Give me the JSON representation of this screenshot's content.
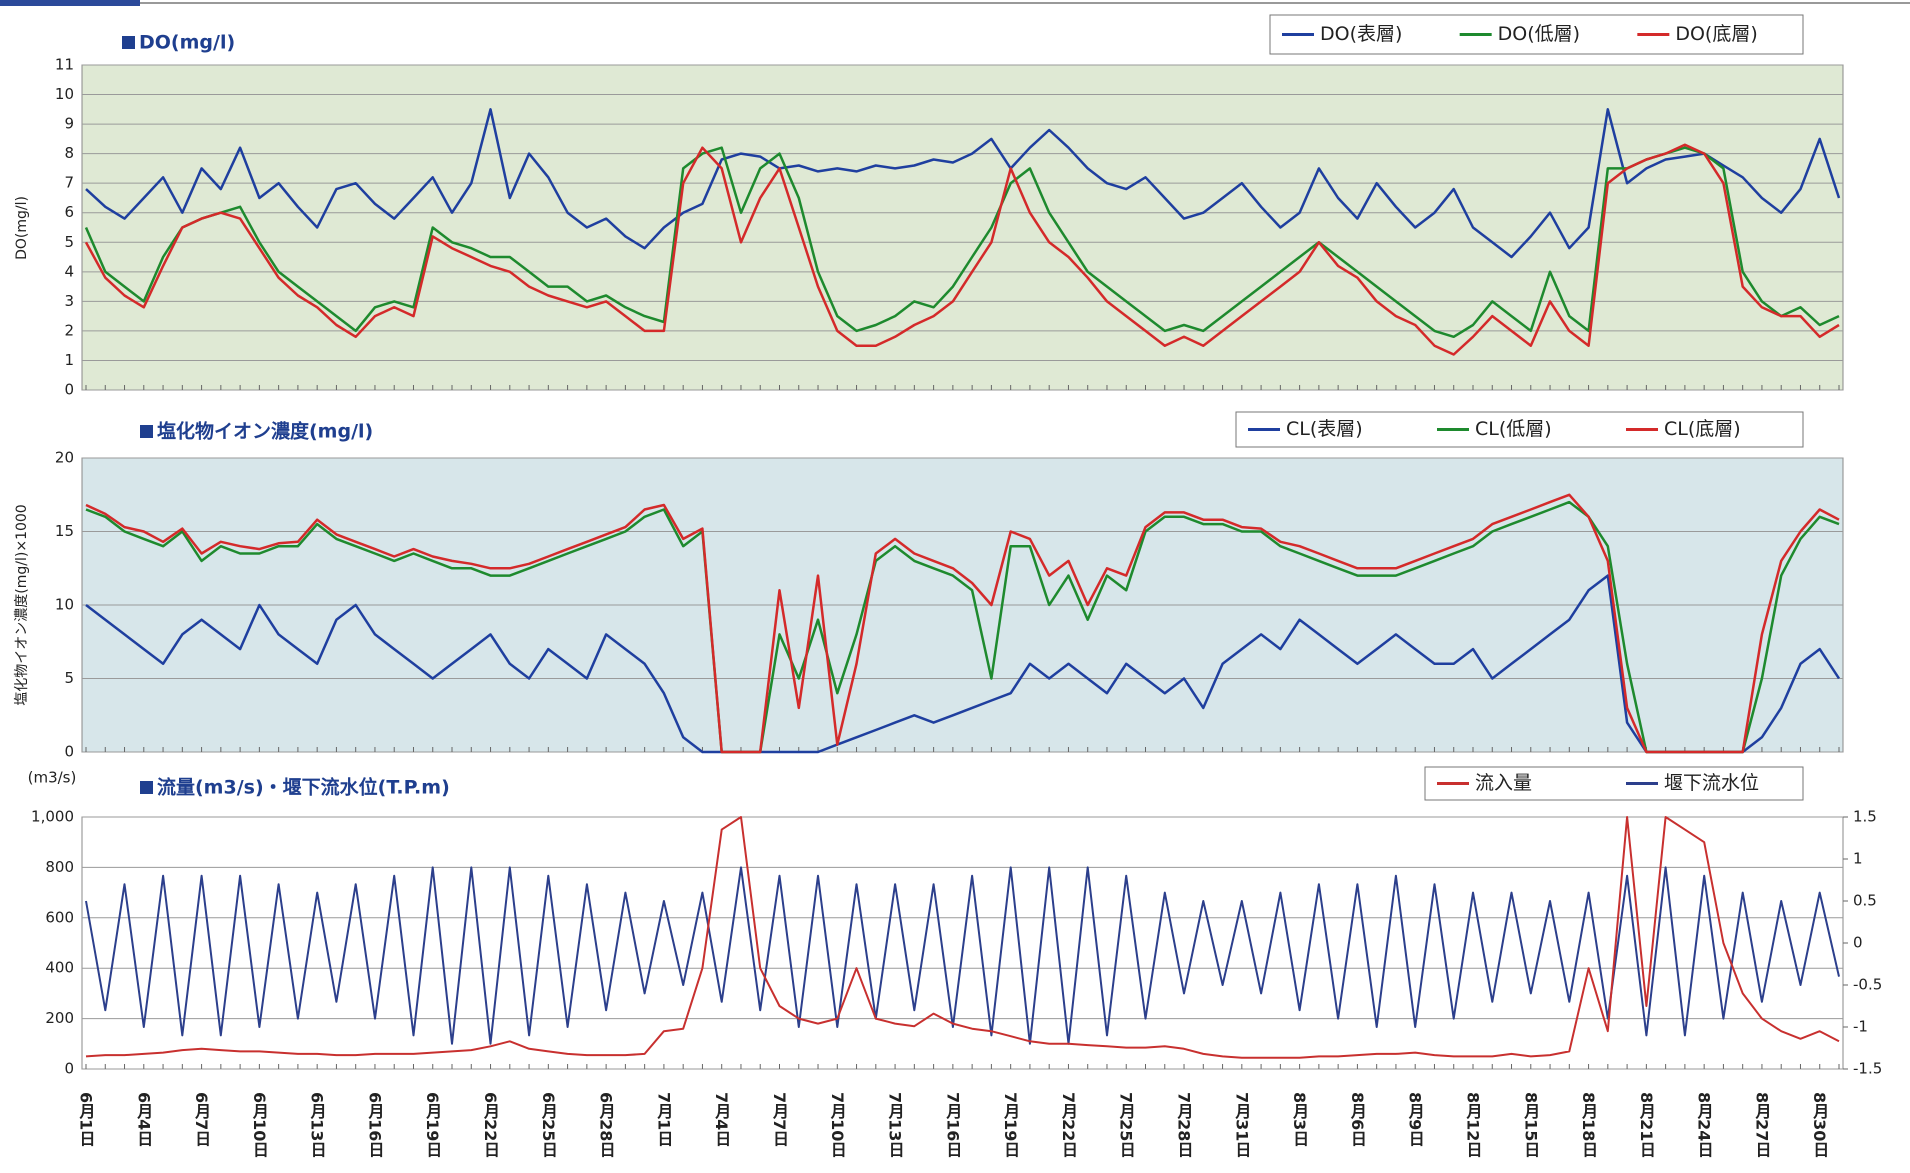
{
  "chart_data": [
    {
      "type": "line",
      "title": "DO(mg/l)",
      "ylabel": "DO(mg/l)",
      "legend": "top-right",
      "grid": true,
      "background": "#dfe9d4",
      "ylim": [
        0,
        11
      ],
      "yticks": [
        0,
        1,
        2,
        3,
        4,
        5,
        6,
        7,
        8,
        9,
        10,
        11
      ],
      "series": [
        {
          "name": "DO(表層)",
          "color": "#1f3f9f",
          "values": [
            6.8,
            6.2,
            5.8,
            6.5,
            7.2,
            6.0,
            7.5,
            6.8,
            8.2,
            6.5,
            7.0,
            6.2,
            5.5,
            6.8,
            7.0,
            6.3,
            5.8,
            6.5,
            7.2,
            6.0,
            7.0,
            9.5,
            6.5,
            8.0,
            7.2,
            6.0,
            5.5,
            5.8,
            5.2,
            4.8,
            5.5,
            6.0,
            6.3,
            7.8,
            8.0,
            7.9,
            7.5,
            7.6,
            7.4,
            7.5,
            7.4,
            7.6,
            7.5,
            7.6,
            7.8,
            7.7,
            8.0,
            8.5,
            7.5,
            8.2,
            8.8,
            8.2,
            7.5,
            7.0,
            6.8,
            7.2,
            6.5,
            5.8,
            6.0,
            6.5,
            7.0,
            6.2,
            5.5,
            6.0,
            7.5,
            6.5,
            5.8,
            7.0,
            6.2,
            5.5,
            6.0,
            6.8,
            5.5,
            5.0,
            4.5,
            5.2,
            6.0,
            4.8,
            5.5,
            9.5,
            7.0,
            7.5,
            7.8,
            7.9,
            8.0,
            7.6,
            7.2,
            6.5,
            6.0,
            6.8,
            8.5,
            6.5
          ]
        },
        {
          "name": "DO(低層)",
          "color": "#1e8a2e",
          "values": [
            5.5,
            4.0,
            3.5,
            3.0,
            4.5,
            5.5,
            5.8,
            6.0,
            6.2,
            5.0,
            4.0,
            3.5,
            3.0,
            2.5,
            2.0,
            2.8,
            3.0,
            2.8,
            5.5,
            5.0,
            4.8,
            4.5,
            4.5,
            4.0,
            3.5,
            3.5,
            3.0,
            3.2,
            2.8,
            2.5,
            2.3,
            7.5,
            8.0,
            8.2,
            6.0,
            7.5,
            8.0,
            6.5,
            4.0,
            2.5,
            2.0,
            2.2,
            2.5,
            3.0,
            2.8,
            3.5,
            4.5,
            5.5,
            7.0,
            7.5,
            6.0,
            5.0,
            4.0,
            3.5,
            3.0,
            2.5,
            2.0,
            2.2,
            2.0,
            2.5,
            3.0,
            3.5,
            4.0,
            4.5,
            5.0,
            4.5,
            4.0,
            3.5,
            3.0,
            2.5,
            2.0,
            1.8,
            2.2,
            3.0,
            2.5,
            2.0,
            4.0,
            2.5,
            2.0,
            7.5,
            7.5,
            7.8,
            8.0,
            8.2,
            8.0,
            7.5,
            4.0,
            3.0,
            2.5,
            2.8,
            2.2,
            2.5
          ]
        },
        {
          "name": "DO(底層)",
          "color": "#d42a2a",
          "values": [
            5.0,
            3.8,
            3.2,
            2.8,
            4.2,
            5.5,
            5.8,
            6.0,
            5.8,
            4.8,
            3.8,
            3.2,
            2.8,
            2.2,
            1.8,
            2.5,
            2.8,
            2.5,
            5.2,
            4.8,
            4.5,
            4.2,
            4.0,
            3.5,
            3.2,
            3.0,
            2.8,
            3.0,
            2.5,
            2.0,
            2.0,
            7.0,
            8.2,
            7.5,
            5.0,
            6.5,
            7.5,
            5.5,
            3.5,
            2.0,
            1.5,
            1.5,
            1.8,
            2.2,
            2.5,
            3.0,
            4.0,
            5.0,
            7.5,
            6.0,
            5.0,
            4.5,
            3.8,
            3.0,
            2.5,
            2.0,
            1.5,
            1.8,
            1.5,
            2.0,
            2.5,
            3.0,
            3.5,
            4.0,
            5.0,
            4.2,
            3.8,
            3.0,
            2.5,
            2.2,
            1.5,
            1.2,
            1.8,
            2.5,
            2.0,
            1.5,
            3.0,
            2.0,
            1.5,
            7.0,
            7.5,
            7.8,
            8.0,
            8.3,
            8.0,
            7.0,
            3.5,
            2.8,
            2.5,
            2.5,
            1.8,
            2.2
          ]
        }
      ]
    },
    {
      "type": "line",
      "title": "塩化物イオン濃度(mg/l)",
      "ylabel": "塩化物イオン濃度(mg/l)×1000",
      "legend": "top-right",
      "grid": true,
      "background": "#d7e6ea",
      "ylim": [
        0,
        20
      ],
      "yticks": [
        0,
        5,
        10,
        15,
        20
      ],
      "series": [
        {
          "name": "CL(表層)",
          "color": "#1f3f9f",
          "values": [
            10,
            9,
            8,
            7,
            6,
            8,
            9,
            8,
            7,
            10,
            8,
            7,
            6,
            9,
            10,
            8,
            7,
            6,
            5,
            6,
            7,
            8,
            6,
            5,
            7,
            6,
            5,
            8,
            7,
            6,
            4,
            1,
            0,
            0,
            0,
            0,
            0,
            0,
            0,
            0.5,
            1,
            1.5,
            2,
            2.5,
            2,
            2.5,
            3,
            3.5,
            4,
            6,
            5,
            6,
            5,
            4,
            6,
            5,
            4,
            5,
            3,
            6,
            7,
            8,
            7,
            9,
            8,
            7,
            6,
            7,
            8,
            7,
            6,
            6,
            7,
            5,
            6,
            7,
            8,
            9,
            11,
            12,
            2,
            0,
            0,
            0,
            0,
            0,
            0,
            1,
            3,
            6,
            7,
            5
          ]
        },
        {
          "name": "CL(低層)",
          "color": "#1e8a2e",
          "values": [
            16.5,
            16,
            15,
            14.5,
            14,
            15,
            13,
            14,
            13.5,
            13.5,
            14,
            14,
            15.5,
            14.5,
            14,
            13.5,
            13,
            13.5,
            13,
            12.5,
            12.5,
            12,
            12,
            12.5,
            13,
            13.5,
            14,
            14.5,
            15,
            16,
            16.5,
            14,
            15,
            0,
            0,
            0,
            8,
            5,
            9,
            4,
            8,
            13,
            14,
            13,
            12.5,
            12,
            11,
            5,
            14,
            14,
            10,
            12,
            9,
            12,
            11,
            15,
            16,
            16,
            15.5,
            15.5,
            15,
            15,
            14,
            13.5,
            13,
            12.5,
            12,
            12,
            12,
            12.5,
            13,
            13.5,
            14,
            15,
            15.5,
            16,
            16.5,
            17,
            16,
            14,
            6,
            0,
            0,
            0,
            0,
            0,
            0,
            5,
            12,
            14.5,
            16,
            15.5
          ]
        },
        {
          "name": "CL(底層)",
          "color": "#d42a2a",
          "values": [
            16.8,
            16.2,
            15.3,
            15,
            14.3,
            15.2,
            13.5,
            14.3,
            14,
            13.8,
            14.2,
            14.3,
            15.8,
            14.8,
            14.3,
            13.8,
            13.3,
            13.8,
            13.3,
            13,
            12.8,
            12.5,
            12.5,
            12.8,
            13.3,
            13.8,
            14.3,
            14.8,
            15.3,
            16.5,
            16.8,
            14.5,
            15.2,
            0,
            0,
            0,
            11,
            3,
            12,
            0.5,
            6,
            13.5,
            14.5,
            13.5,
            13,
            12.5,
            11.5,
            10,
            15,
            14.5,
            12,
            13,
            10,
            12.5,
            12,
            15.3,
            16.3,
            16.3,
            15.8,
            15.8,
            15.3,
            15.2,
            14.3,
            14,
            13.5,
            13,
            12.5,
            12.5,
            12.5,
            13,
            13.5,
            14,
            14.5,
            15.5,
            16,
            16.5,
            17,
            17.5,
            16,
            13,
            3,
            0,
            0,
            0,
            0,
            0,
            0,
            8,
            13,
            15,
            16.5,
            15.8
          ]
        }
      ]
    },
    {
      "type": "line",
      "title": "流量(m3/s)・堰下流水位(T.P.m)",
      "ylabel": "(m3/s)",
      "legend": "top-right",
      "grid": true,
      "background": "#ffffff",
      "categories": [
        "6月1日",
        null,
        null,
        "6月4日",
        null,
        null,
        "6月7日",
        null,
        null,
        "6月10日",
        null,
        null,
        "6月13日",
        null,
        null,
        "6月16日",
        null,
        null,
        "6月19日",
        null,
        null,
        "6月22日",
        null,
        null,
        "6月25日",
        null,
        null,
        "6月28日",
        null,
        null,
        "7月1日",
        null,
        null,
        "7月4日",
        null,
        null,
        "7月7日",
        null,
        null,
        "7月10日",
        null,
        null,
        "7月13日",
        null,
        null,
        "7月16日",
        null,
        null,
        "7月19日",
        null,
        null,
        "7月22日",
        null,
        null,
        "7月25日",
        null,
        null,
        "7月28日",
        null,
        null,
        "7月31日",
        null,
        null,
        "8月3日",
        null,
        null,
        "8月6日",
        null,
        null,
        "8月9日",
        null,
        null,
        "8月12日",
        null,
        null,
        "8月15日",
        null,
        null,
        "8月18日",
        null,
        null,
        "8月21日",
        null,
        null,
        "8月24日",
        null,
        null,
        "8月27日",
        null,
        null,
        "8月30日",
        null
      ],
      "ylim": [
        0,
        1000
      ],
      "yticks": [
        0,
        200,
        400,
        600,
        800,
        {
          "value": 1000,
          "label": "1,000"
        }
      ],
      "y2lim": [
        -1.5,
        1.5
      ],
      "y2ticks": [
        -1.5,
        -1,
        -0.5,
        0,
        0.5,
        1,
        1.5
      ],
      "series": [
        {
          "name": "流入量",
          "color": "#c8302f",
          "values": [
            50,
            55,
            55,
            60,
            65,
            75,
            80,
            75,
            70,
            70,
            65,
            60,
            60,
            55,
            55,
            60,
            60,
            60,
            65,
            70,
            75,
            90,
            110,
            80,
            70,
            60,
            55,
            55,
            55,
            60,
            150,
            160,
            400,
            950,
            1000,
            400,
            250,
            200,
            180,
            200,
            400,
            200,
            180,
            170,
            220,
            180,
            160,
            150,
            130,
            110,
            100,
            100,
            95,
            90,
            85,
            85,
            90,
            80,
            60,
            50,
            45,
            45,
            45,
            45,
            50,
            50,
            55,
            60,
            60,
            65,
            55,
            50,
            50,
            50,
            60,
            50,
            55,
            70,
            400,
            150,
            1000,
            250,
            1000,
            950,
            900,
            500,
            300,
            200,
            150,
            120,
            150,
            110
          ]
        },
        {
          "name": "堰下流水位",
          "color": "#2c3f8c",
          "axis": "y2",
          "values": [
            0.5,
            -0.8,
            0.7,
            -1.0,
            0.8,
            -1.1,
            0.8,
            -1.1,
            0.8,
            -1.0,
            0.7,
            -0.9,
            0.6,
            -0.7,
            0.7,
            -0.9,
            0.8,
            -1.1,
            0.9,
            -1.2,
            0.9,
            -1.2,
            0.9,
            -1.1,
            0.8,
            -1.0,
            0.7,
            -0.8,
            0.6,
            -0.6,
            0.5,
            -0.5,
            0.6,
            -0.7,
            0.9,
            -0.8,
            0.8,
            -1.0,
            0.8,
            -1.0,
            0.7,
            -0.9,
            0.7,
            -0.8,
            0.7,
            -1.0,
            0.8,
            -1.1,
            0.9,
            -1.2,
            0.9,
            -1.2,
            0.9,
            -1.1,
            0.8,
            -0.9,
            0.6,
            -0.6,
            0.5,
            -0.5,
            0.5,
            -0.6,
            0.6,
            -0.8,
            0.7,
            -0.9,
            0.7,
            -1.0,
            0.8,
            -1.0,
            0.7,
            -0.9,
            0.6,
            -0.7,
            0.6,
            -0.6,
            0.5,
            -0.7,
            0.6,
            -0.9,
            0.8,
            -1.1,
            0.9,
            -1.1,
            0.8,
            -0.9,
            0.6,
            -0.7,
            0.5,
            -0.5,
            0.6,
            -0.4
          ]
        }
      ]
    }
  ]
}
